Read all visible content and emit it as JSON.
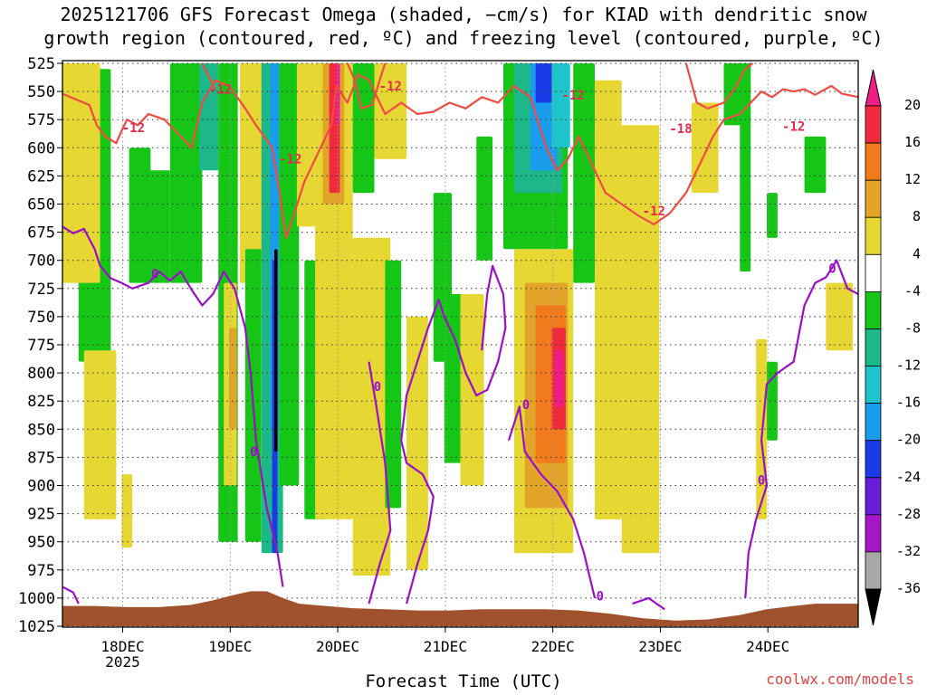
{
  "title_line1": "2025121706 GFS Forecast Omega (shaded, −cm/s) for KIAD with dendritic snow",
  "title_line2": "growth region (contoured, red, ºC) and freezing level (contoured, purple, ºC)",
  "xlabel": "Forecast Time (UTC)",
  "credit": "coolwx.com/models",
  "colors": {
    "ground": "#a0522d",
    "dendritic_contour": "#ef4a44",
    "freezing_contour": "#9a0fc8",
    "contour_label": "#e8294d"
  },
  "chart_data": {
    "type": "heatmap",
    "title": "2025121706 GFS Forecast Omega (shaded, −cm/s) for KIAD with dendritic snow growth region (contoured, red, ºC) and freezing level (contoured, purple, ºC)",
    "xlabel": "Forecast Time (UTC)",
    "ylabel": "",
    "x_ticks": [
      {
        "t": 0.56,
        "label": "18DEC",
        "sub": "2025"
      },
      {
        "t": 1.56,
        "label": "19DEC",
        "sub": ""
      },
      {
        "t": 2.56,
        "label": "20DEC",
        "sub": ""
      },
      {
        "t": 3.56,
        "label": "21DEC",
        "sub": ""
      },
      {
        "t": 4.56,
        "label": "22DEC",
        "sub": ""
      },
      {
        "t": 5.56,
        "label": "23DEC",
        "sub": ""
      },
      {
        "t": 6.56,
        "label": "24DEC",
        "sub": ""
      }
    ],
    "xlim_days": [
      0,
      7.4
    ],
    "y_levels_hpa": [
      525,
      550,
      575,
      600,
      625,
      650,
      675,
      700,
      725,
      750,
      775,
      800,
      825,
      850,
      875,
      900,
      925,
      950,
      975,
      1000,
      1025
    ],
    "ylim_hpa": [
      525,
      1025
    ],
    "ygrid": true,
    "colorbar": {
      "labels": [
        "20",
        "16",
        "12",
        "8",
        "4",
        "-4",
        "-8",
        "-12",
        "-16",
        "-20",
        "-24",
        "-28",
        "-32",
        "-36"
      ],
      "bins": [
        {
          "range": "16-20",
          "color": "#ee2a3c"
        },
        {
          "range": "12-16",
          "color": "#f07a1c"
        },
        {
          "range": "8-12",
          "color": "#e2a52a"
        },
        {
          "range": "4-8",
          "color": "#e6d732"
        },
        {
          "range": "-4-4",
          "color": "#ffffff"
        },
        {
          "range": "-8--4",
          "color": "#16c616"
        },
        {
          "range": "-12--8",
          "color": "#1cb88a"
        },
        {
          "range": "-16--12",
          "color": "#1dc4cc"
        },
        {
          "range": "-20--16",
          "color": "#1a9cec"
        },
        {
          "range": "-24--20",
          "color": "#1a3ce8"
        },
        {
          "range": "-28--24",
          "color": "#6a1cd8"
        },
        {
          "range": "-32--28",
          "color": "#a416c6"
        },
        {
          "range": "-36--32",
          "color": "#a8a8a8"
        }
      ],
      "top_color": "#ee1e86",
      "bottom_color": "#000000"
    },
    "dendritic_contour_labels": [
      "-12",
      "-12",
      "-12",
      "-12",
      "-12",
      "-18",
      "-12",
      "-12"
    ],
    "freezing_contour_labels": [
      "0",
      "0",
      "0",
      "0",
      "0",
      "0",
      "0"
    ],
    "omega_features": [
      {
        "t0": 0.15,
        "t1": 0.45,
        "p0": 530,
        "p1": 790,
        "value": -6
      },
      {
        "t0": 0.0,
        "t1": 0.35,
        "p0": 525,
        "p1": 720,
        "value": 5
      },
      {
        "t0": 0.2,
        "t1": 0.5,
        "p0": 780,
        "p1": 930,
        "value": 5
      },
      {
        "t0": 0.55,
        "t1": 0.65,
        "p0": 890,
        "p1": 955,
        "value": 6
      },
      {
        "t0": 0.62,
        "t1": 0.82,
        "p0": 600,
        "p1": 720,
        "value": -6
      },
      {
        "t0": 0.8,
        "t1": 1.0,
        "p0": 620,
        "p1": 720,
        "value": -6
      },
      {
        "t0": 1.0,
        "t1": 1.3,
        "p0": 525,
        "p1": 720,
        "value": -6
      },
      {
        "t0": 1.27,
        "t1": 1.45,
        "p0": 525,
        "p1": 620,
        "value": -11
      },
      {
        "t0": 1.45,
        "t1": 1.63,
        "p0": 525,
        "p1": 950,
        "value": -6
      },
      {
        "t0": 1.5,
        "t1": 1.62,
        "p0": 720,
        "p1": 900,
        "value": 6
      },
      {
        "t0": 1.55,
        "t1": 1.62,
        "p0": 760,
        "p1": 850,
        "value": 10
      },
      {
        "t0": 1.65,
        "t1": 1.95,
        "p0": 525,
        "p1": 720,
        "value": 5
      },
      {
        "t0": 1.7,
        "t1": 1.85,
        "p0": 690,
        "p1": 950,
        "value": -6
      },
      {
        "t0": 1.85,
        "t1": 2.05,
        "p0": 525,
        "p1": 960,
        "value": -10
      },
      {
        "t0": 1.93,
        "t1": 2.01,
        "p0": 525,
        "p1": 850,
        "value": -18
      },
      {
        "t0": 1.95,
        "t1": 2.0,
        "p0": 700,
        "p1": 960,
        "value": -22
      },
      {
        "t0": 1.97,
        "t1": 2.0,
        "p0": 690,
        "p1": 870,
        "value": -40
      },
      {
        "t0": 2.02,
        "t1": 2.2,
        "p0": 525,
        "p1": 900,
        "value": -6
      },
      {
        "t0": 2.18,
        "t1": 2.35,
        "p0": 525,
        "p1": 670,
        "value": 5
      },
      {
        "t0": 2.25,
        "t1": 2.45,
        "p0": 700,
        "p1": 930,
        "value": -6
      },
      {
        "t0": 2.35,
        "t1": 2.7,
        "p0": 525,
        "p1": 930,
        "value": 5
      },
      {
        "t0": 2.42,
        "t1": 2.62,
        "p0": 525,
        "p1": 650,
        "value": 10
      },
      {
        "t0": 2.48,
        "t1": 2.58,
        "p0": 525,
        "p1": 640,
        "value": 17
      },
      {
        "t0": 2.54,
        "t1": 2.58,
        "p0": 525,
        "p1": 580,
        "value": 22
      },
      {
        "t0": 2.7,
        "t1": 2.9,
        "p0": 525,
        "p1": 640,
        "value": -6
      },
      {
        "t0": 2.7,
        "t1": 3.05,
        "p0": 680,
        "p1": 980,
        "value": 5
      },
      {
        "t0": 2.9,
        "t1": 3.2,
        "p0": 525,
        "p1": 610,
        "value": 5
      },
      {
        "t0": 3.0,
        "t1": 3.15,
        "p0": 700,
        "p1": 920,
        "value": -6
      },
      {
        "t0": 3.2,
        "t1": 3.4,
        "p0": 750,
        "p1": 975,
        "value": 5
      },
      {
        "t0": 3.45,
        "t1": 3.62,
        "p0": 640,
        "p1": 790,
        "value": -6
      },
      {
        "t0": 3.55,
        "t1": 3.72,
        "p0": 730,
        "p1": 880,
        "value": -6
      },
      {
        "t0": 3.7,
        "t1": 3.92,
        "p0": 730,
        "p1": 900,
        "value": 5
      },
      {
        "t0": 3.85,
        "t1": 4.0,
        "p0": 590,
        "p1": 700,
        "value": -6
      },
      {
        "t0": 4.1,
        "t1": 4.7,
        "p0": 525,
        "p1": 690,
        "value": -6
      },
      {
        "t0": 4.2,
        "t1": 4.65,
        "p0": 525,
        "p1": 640,
        "value": -11
      },
      {
        "t0": 4.35,
        "t1": 4.6,
        "p0": 525,
        "p1": 620,
        "value": -17
      },
      {
        "t0": 4.4,
        "t1": 4.55,
        "p0": 525,
        "p1": 560,
        "value": -22
      },
      {
        "t0": 4.55,
        "t1": 4.72,
        "p0": 525,
        "p1": 600,
        "value": -13
      },
      {
        "t0": 4.2,
        "t1": 4.75,
        "p0": 690,
        "p1": 960,
        "value": 5
      },
      {
        "t0": 4.3,
        "t1": 4.7,
        "p0": 720,
        "p1": 920,
        "value": 10
      },
      {
        "t0": 4.4,
        "t1": 4.68,
        "p0": 740,
        "p1": 880,
        "value": 13
      },
      {
        "t0": 4.55,
        "t1": 4.68,
        "p0": 760,
        "p1": 850,
        "value": 17
      },
      {
        "t0": 4.58,
        "t1": 4.66,
        "p0": 780,
        "p1": 830,
        "value": 22
      },
      {
        "t0": 4.75,
        "t1": 4.95,
        "p0": 525,
        "p1": 720,
        "value": -6
      },
      {
        "t0": 4.95,
        "t1": 5.2,
        "p0": 540,
        "p1": 930,
        "value": 5
      },
      {
        "t0": 5.2,
        "t1": 5.55,
        "p0": 580,
        "p1": 960,
        "value": 5
      },
      {
        "t0": 5.85,
        "t1": 6.1,
        "p0": 560,
        "p1": 640,
        "value": 5
      },
      {
        "t0": 6.15,
        "t1": 6.4,
        "p0": 525,
        "p1": 580,
        "value": -6
      },
      {
        "t0": 6.3,
        "t1": 6.4,
        "p0": 525,
        "p1": 710,
        "value": -6
      },
      {
        "t0": 6.55,
        "t1": 6.65,
        "p0": 640,
        "p1": 680,
        "value": -6
      },
      {
        "t0": 6.55,
        "t1": 6.65,
        "p0": 790,
        "p1": 860,
        "value": -6
      },
      {
        "t0": 6.45,
        "t1": 6.55,
        "p0": 770,
        "p1": 930,
        "value": 5
      },
      {
        "t0": 6.9,
        "t1": 7.1,
        "p0": 590,
        "p1": 640,
        "value": -6
      },
      {
        "t0": 7.1,
        "t1": 7.35,
        "p0": 720,
        "p1": 780,
        "value": 5
      }
    ]
  }
}
